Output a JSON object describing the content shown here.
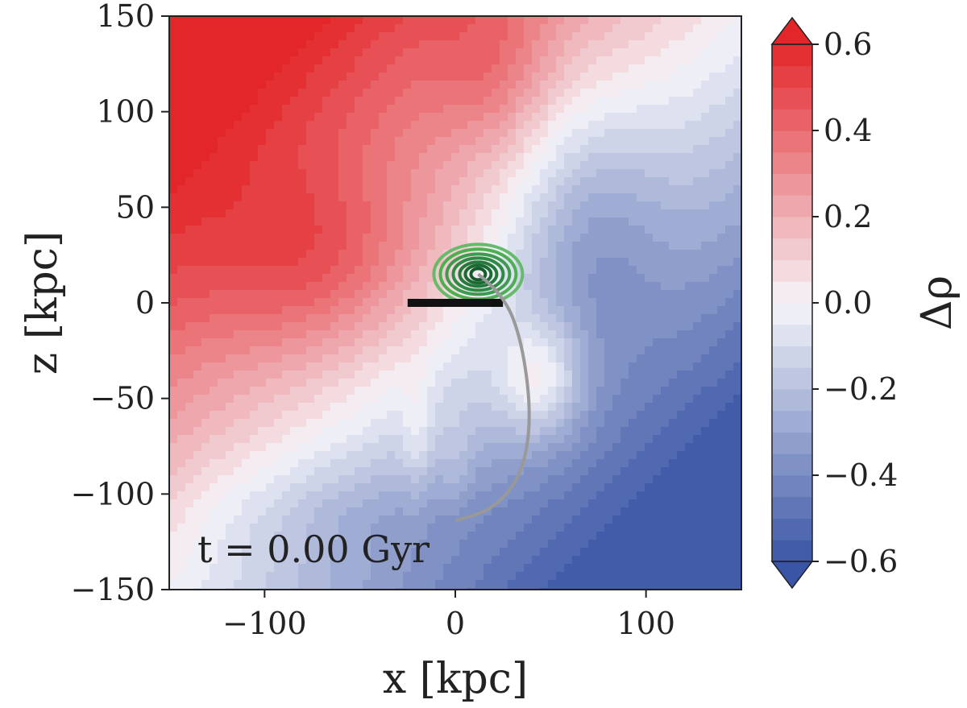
{
  "chart_data": {
    "type": "contourf",
    "xlabel": "x [kpc]",
    "ylabel": "z [kpc]",
    "xlim": [
      -150,
      150
    ],
    "ylim": [
      -150,
      150
    ],
    "xticks": [
      -100,
      0,
      100
    ],
    "xtick_labels": [
      "−100",
      "0",
      "100"
    ],
    "yticks": [
      150,
      100,
      50,
      0,
      -50,
      -100,
      -150
    ],
    "ytick_labels": [
      "150",
      "100",
      "50",
      "0",
      "−50",
      "−100",
      "−150"
    ],
    "annotation": "t = 0.00 Gyr",
    "colorbar": {
      "label": "Δρ",
      "range": [
        -0.6,
        0.6
      ],
      "ticks": [
        0.6,
        0.4,
        0.2,
        0.0,
        -0.2,
        -0.4,
        -0.6
      ],
      "tick_labels": [
        "0.6",
        "0.4",
        "0.2",
        "0.0",
        "−0.2",
        "−0.4",
        "−0.6"
      ],
      "levels": 24,
      "extend": "both",
      "cmap": "coolwarm-like (blue → white → red)"
    },
    "colors": {
      "high": "#e3262a",
      "mid": "#f5f5fa",
      "low": "#3a55a5",
      "satellite_contours": "#2e9a4e",
      "orbit_line": "#999999",
      "disk_bar": "#111111"
    },
    "features": {
      "satellite_center": [
        12,
        15
      ],
      "disk_bar": {
        "x_from": -25,
        "x_to": 25,
        "z": 0
      },
      "orbit_track": [
        [
          12,
          15
        ],
        [
          25,
          5
        ],
        [
          35,
          -20
        ],
        [
          40,
          -60
        ],
        [
          35,
          -90
        ],
        [
          20,
          -108
        ],
        [
          0,
          -114
        ]
      ]
    }
  }
}
